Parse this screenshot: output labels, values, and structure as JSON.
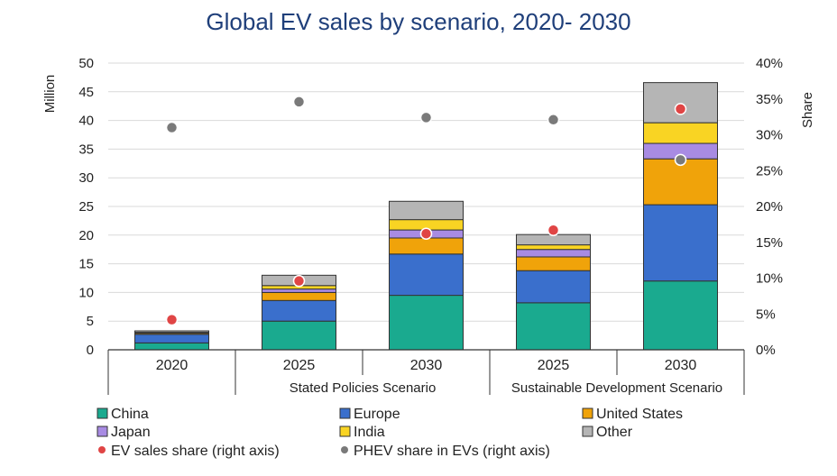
{
  "chart_data": {
    "type": "bar",
    "title": "Global EV sales by scenario, 2020- 2030",
    "ylabel": "Million",
    "y2label": "Share",
    "ylim": [
      0,
      50
    ],
    "y2lim": [
      0,
      40
    ],
    "yticks": [
      "0",
      "5",
      "10",
      "15",
      "20",
      "25",
      "30",
      "35",
      "40",
      "45",
      "50"
    ],
    "y2ticks": [
      "0%",
      "5%",
      "10%",
      "15%",
      "20%",
      "25%",
      "30%",
      "35%",
      "40%"
    ],
    "categories": [
      "2020",
      "2025",
      "2030",
      "2025",
      "2030"
    ],
    "groups": [
      {
        "label": "Stated Policies Scenario",
        "start": 1,
        "end": 2
      },
      {
        "label": "Sustainable Development Scenario",
        "start": 3,
        "end": 4
      }
    ],
    "series": [
      {
        "name": "China",
        "color": "#1aaa8f",
        "values": [
          1.2,
          5.0,
          9.5,
          8.2,
          12.0
        ]
      },
      {
        "name": "Europe",
        "color": "#3a6fcc",
        "values": [
          1.5,
          3.6,
          7.2,
          5.6,
          13.3
        ]
      },
      {
        "name": "United States",
        "color": "#f0a30a",
        "values": [
          0.2,
          1.4,
          2.8,
          2.4,
          8.0
        ]
      },
      {
        "name": "Japan",
        "color": "#a88be3",
        "values": [
          0.1,
          0.6,
          1.4,
          1.3,
          2.7
        ]
      },
      {
        "name": "India",
        "color": "#f9d423",
        "values": [
          0.05,
          0.6,
          1.8,
          0.8,
          3.6
        ]
      },
      {
        "name": "Other",
        "color": "#b5b5b5",
        "values": [
          0.25,
          1.8,
          3.2,
          1.8,
          7.0
        ]
      }
    ],
    "lines": [
      {
        "name": "EV sales share (right axis)",
        "color": "#e04545",
        "values": [
          4.2,
          9.6,
          16.2,
          16.7,
          33.6
        ]
      },
      {
        "name": "PHEV share in EVs (right axis)",
        "color": "#7a7a7a",
        "values": [
          31.0,
          34.6,
          32.4,
          32.1,
          26.5
        ]
      }
    ]
  }
}
